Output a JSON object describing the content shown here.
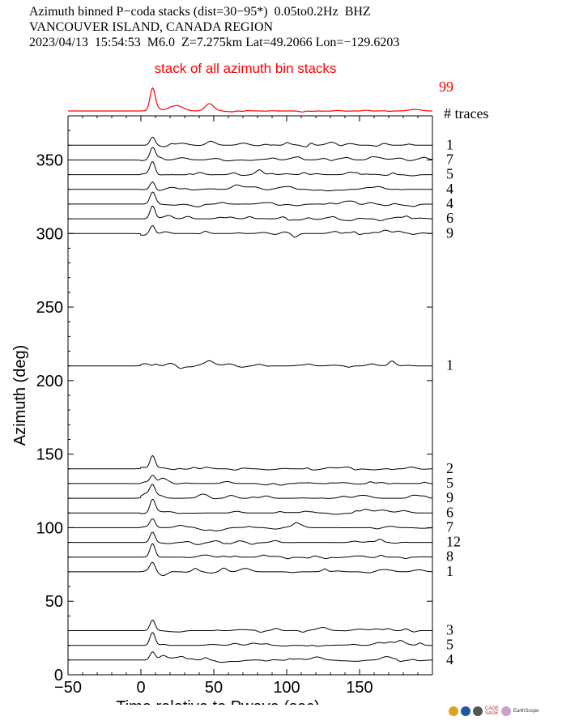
{
  "header": {
    "line1": "Azimuth binned P−coda stacks (dist=30−95*)  0.05to0.2Hz  BHZ",
    "line2": "VANCOUVER ISLAND, CANADA REGION",
    "line3": "2023/04/13  15:54:53  M6.0  Z=7.275km Lat=49.2066 Lon=−129.6203"
  },
  "chart_data": {
    "type": "line",
    "title": "",
    "xlabel": "Time relative to Pwave (sec)",
    "ylabel": "Azimuth (deg)",
    "xlim": [
      -50,
      200
    ],
    "ylim": [
      0,
      380
    ],
    "xticks": [
      -50,
      0,
      50,
      100,
      150
    ],
    "yticks": [
      0,
      50,
      100,
      150,
      200,
      250,
      300,
      350
    ],
    "xtick_labels": [
      "−50",
      "0",
      "50",
      "100",
      "150"
    ],
    "ytick_labels": [
      "0",
      "50",
      "100",
      "150",
      "200",
      "250",
      "300",
      "350"
    ],
    "stack": {
      "label": "stack of all azimuth bin stacks",
      "trace_count": "99",
      "color": "#ff0000"
    },
    "traces_header": "# traces",
    "series": [
      {
        "azimuth": 360,
        "count": "1"
      },
      {
        "azimuth": 350,
        "count": "7"
      },
      {
        "azimuth": 340,
        "count": "5"
      },
      {
        "azimuth": 330,
        "count": "4"
      },
      {
        "azimuth": 320,
        "count": "4"
      },
      {
        "azimuth": 310,
        "count": "6"
      },
      {
        "azimuth": 300,
        "count": "9"
      },
      {
        "azimuth": 210,
        "count": "1"
      },
      {
        "azimuth": 140,
        "count": "2"
      },
      {
        "azimuth": 130,
        "count": "5"
      },
      {
        "azimuth": 120,
        "count": "9"
      },
      {
        "azimuth": 110,
        "count": "6"
      },
      {
        "azimuth": 100,
        "count": "7"
      },
      {
        "azimuth": 90,
        "count": "12"
      },
      {
        "azimuth": 80,
        "count": "8"
      },
      {
        "azimuth": 70,
        "count": "1"
      },
      {
        "azimuth": 30,
        "count": "3"
      },
      {
        "azimuth": 20,
        "count": "5"
      },
      {
        "azimuth": 10,
        "count": "4"
      }
    ],
    "grid": false,
    "trace_color": "#000000"
  },
  "footer": {
    "logo_text1": "CAGE",
    "logo_text2": "SAGE",
    "logo_text3": "EarthScope"
  }
}
